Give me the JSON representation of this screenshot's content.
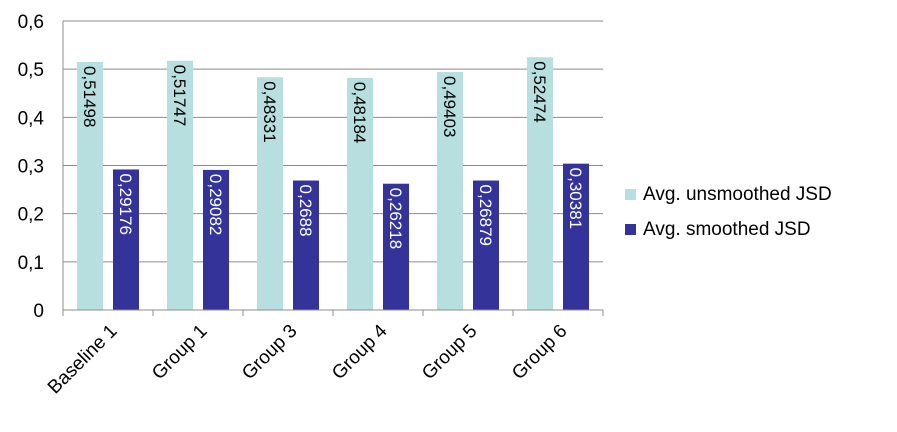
{
  "chart_data": {
    "type": "bar",
    "categories": [
      "Baseline 1",
      "Group 1",
      "Group 3",
      "Group 4",
      "Group 5",
      "Group 6"
    ],
    "series": [
      {
        "name": "Avg. unsmoothed JSD",
        "values": [
          0.51498,
          0.51747,
          0.48331,
          0.48184,
          0.49403,
          0.52474
        ],
        "labels": [
          "0,51498",
          "0,51747",
          "0,48331",
          "0,48184",
          "0,49403",
          "0,52474"
        ],
        "color": "#b8dfe0",
        "label_color": "#000000"
      },
      {
        "name": "Avg. smoothed JSD",
        "values": [
          0.29176,
          0.29082,
          0.2688,
          0.26218,
          0.26879,
          0.30381
        ],
        "labels": [
          "0,29176",
          "0,29082",
          "0,2688",
          "0,26218",
          "0,26879",
          "0,30381"
        ],
        "color": "#333399",
        "label_color": "#ffffff"
      }
    ],
    "y_ticks": [
      "0",
      "0,1",
      "0,2",
      "0,3",
      "0,4",
      "0,5",
      "0,6"
    ],
    "ylim": [
      0,
      0.6
    ],
    "grid": true,
    "legend_position": "right",
    "title": "",
    "xlabel": "",
    "ylabel": ""
  }
}
